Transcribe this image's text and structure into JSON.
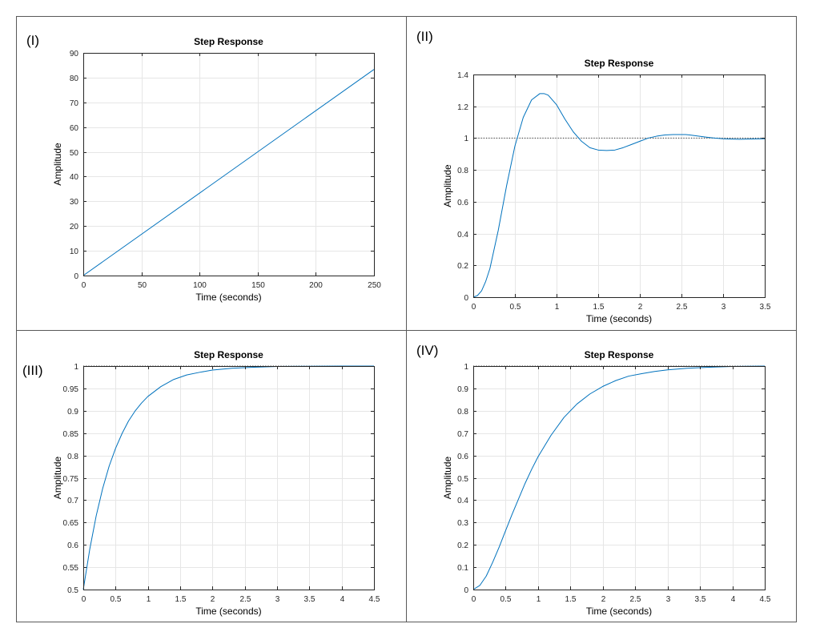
{
  "colors": {
    "line": "#0072BD",
    "grid": "#e6e6e6",
    "axis": "#262626",
    "border": "#595959",
    "dotted": "#333333"
  },
  "chart_data": [
    {
      "id": "p1",
      "panel_label": "(I)",
      "type": "line",
      "title": "Step Response",
      "xlabel": "Time (seconds)",
      "ylabel": "Amplitude",
      "xlim": [
        0,
        250
      ],
      "ylim": [
        0,
        90
      ],
      "xticks": [
        0,
        50,
        100,
        150,
        200,
        250
      ],
      "yticks": [
        0,
        10,
        20,
        30,
        40,
        50,
        60,
        70,
        80,
        90
      ],
      "xtick_labels": [
        "0",
        "50",
        "100",
        "150",
        "200",
        "250"
      ],
      "ytick_labels": [
        "0",
        "10",
        "20",
        "30",
        "40",
        "50",
        "60",
        "70",
        "80",
        "90"
      ],
      "grid": true,
      "reference_line": null,
      "series": [
        {
          "x": [
            0,
            250
          ],
          "y": [
            0,
            83.3
          ]
        }
      ]
    },
    {
      "id": "p2",
      "panel_label": "(II)",
      "type": "line",
      "title": "Step Response",
      "xlabel": "Time (seconds)",
      "ylabel": "Amplitude",
      "xlim": [
        0,
        3.5
      ],
      "ylim": [
        0,
        1.4
      ],
      "xticks": [
        0,
        0.5,
        1,
        1.5,
        2,
        2.5,
        3,
        3.5
      ],
      "yticks": [
        0,
        0.2,
        0.4,
        0.6,
        0.8,
        1,
        1.2,
        1.4
      ],
      "xtick_labels": [
        "0",
        "0.5",
        "1",
        "1.5",
        "2",
        "2.5",
        "3",
        "3.5"
      ],
      "ytick_labels": [
        "0",
        "0.2",
        "0.4",
        "0.6",
        "0.8",
        "1",
        "1.2",
        "1.4"
      ],
      "grid": true,
      "reference_line": 1,
      "series": [
        {
          "x": [
            0,
            0.05,
            0.1,
            0.15,
            0.2,
            0.3,
            0.4,
            0.5,
            0.6,
            0.7,
            0.8,
            0.85,
            0.9,
            1.0,
            1.1,
            1.2,
            1.3,
            1.4,
            1.5,
            1.6,
            1.7,
            1.8,
            1.9,
            2.0,
            2.1,
            2.2,
            2.3,
            2.4,
            2.5,
            2.55,
            2.6,
            2.7,
            2.8,
            2.9,
            3.0,
            3.1,
            3.2,
            3.3,
            3.4,
            3.5
          ],
          "y": [
            0,
            0.01,
            0.04,
            0.1,
            0.18,
            0.42,
            0.7,
            0.95,
            1.13,
            1.24,
            1.28,
            1.28,
            1.27,
            1.21,
            1.12,
            1.04,
            0.98,
            0.94,
            0.925,
            0.922,
            0.925,
            0.94,
            0.96,
            0.98,
            1.0,
            1.012,
            1.02,
            1.022,
            1.022,
            1.022,
            1.02,
            1.013,
            1.006,
            1.0,
            0.996,
            0.994,
            0.993,
            0.994,
            0.995,
            0.996
          ]
        }
      ]
    },
    {
      "id": "p3",
      "panel_label": "(III)",
      "type": "line",
      "title": "Step Response",
      "xlabel": "Time (seconds)",
      "ylabel": "Amplitude",
      "xlim": [
        0,
        4.5
      ],
      "ylim": [
        0.5,
        1
      ],
      "xticks": [
        0,
        0.5,
        1,
        1.5,
        2,
        2.5,
        3,
        3.5,
        4,
        4.5
      ],
      "yticks": [
        0.5,
        0.55,
        0.6,
        0.65,
        0.7,
        0.75,
        0.8,
        0.85,
        0.9,
        0.95,
        1
      ],
      "xtick_labels": [
        "0",
        "0.5",
        "1",
        "1.5",
        "2",
        "2.5",
        "3",
        "3.5",
        "4",
        "4.5"
      ],
      "ytick_labels": [
        "0.5",
        "0.55",
        "0.6",
        "0.65",
        "0.7",
        "0.75",
        "0.8",
        "0.85",
        "0.9",
        "0.95",
        "1"
      ],
      "grid": true,
      "reference_line": 1,
      "series": [
        {
          "x": [
            0,
            0.1,
            0.2,
            0.3,
            0.4,
            0.5,
            0.6,
            0.7,
            0.8,
            0.9,
            1.0,
            1.2,
            1.4,
            1.6,
            1.8,
            2.0,
            2.3,
            2.6,
            3.0,
            3.5,
            4.0,
            4.5
          ],
          "y": [
            0.5,
            0.59,
            0.665,
            0.726,
            0.776,
            0.816,
            0.849,
            0.877,
            0.899,
            0.917,
            0.932,
            0.954,
            0.97,
            0.98,
            0.986,
            0.991,
            0.995,
            0.997,
            0.999,
            0.9995,
            1.0,
            1.0
          ]
        }
      ]
    },
    {
      "id": "p4",
      "panel_label": "(IV)",
      "type": "line",
      "title": "Step Response",
      "xlabel": "Time (seconds)",
      "ylabel": "Amplitude",
      "xlim": [
        0,
        4.5
      ],
      "ylim": [
        0,
        1
      ],
      "xticks": [
        0,
        0.5,
        1,
        1.5,
        2,
        2.5,
        3,
        3.5,
        4,
        4.5
      ],
      "yticks": [
        0,
        0.1,
        0.2,
        0.3,
        0.4,
        0.5,
        0.6,
        0.7,
        0.8,
        0.9,
        1
      ],
      "xtick_labels": [
        "0",
        "0.5",
        "1",
        "1.5",
        "2",
        "2.5",
        "3",
        "3.5",
        "4",
        "4.5"
      ],
      "ytick_labels": [
        "0",
        "0.1",
        "0.2",
        "0.3",
        "0.4",
        "0.5",
        "0.6",
        "0.7",
        "0.8",
        "0.9",
        "1"
      ],
      "grid": true,
      "reference_line": 1,
      "series": [
        {
          "x": [
            0,
            0.1,
            0.2,
            0.3,
            0.4,
            0.5,
            0.6,
            0.7,
            0.8,
            0.9,
            1.0,
            1.2,
            1.4,
            1.6,
            1.8,
            2.0,
            2.2,
            2.4,
            2.6,
            2.8,
            3.0,
            3.3,
            3.6,
            4.0,
            4.5
          ],
          "y": [
            0,
            0.018,
            0.06,
            0.122,
            0.19,
            0.264,
            0.337,
            0.406,
            0.475,
            0.537,
            0.594,
            0.69,
            0.77,
            0.83,
            0.875,
            0.909,
            0.935,
            0.955,
            0.966,
            0.976,
            0.983,
            0.99,
            0.994,
            0.998,
            1.0
          ]
        }
      ]
    }
  ]
}
